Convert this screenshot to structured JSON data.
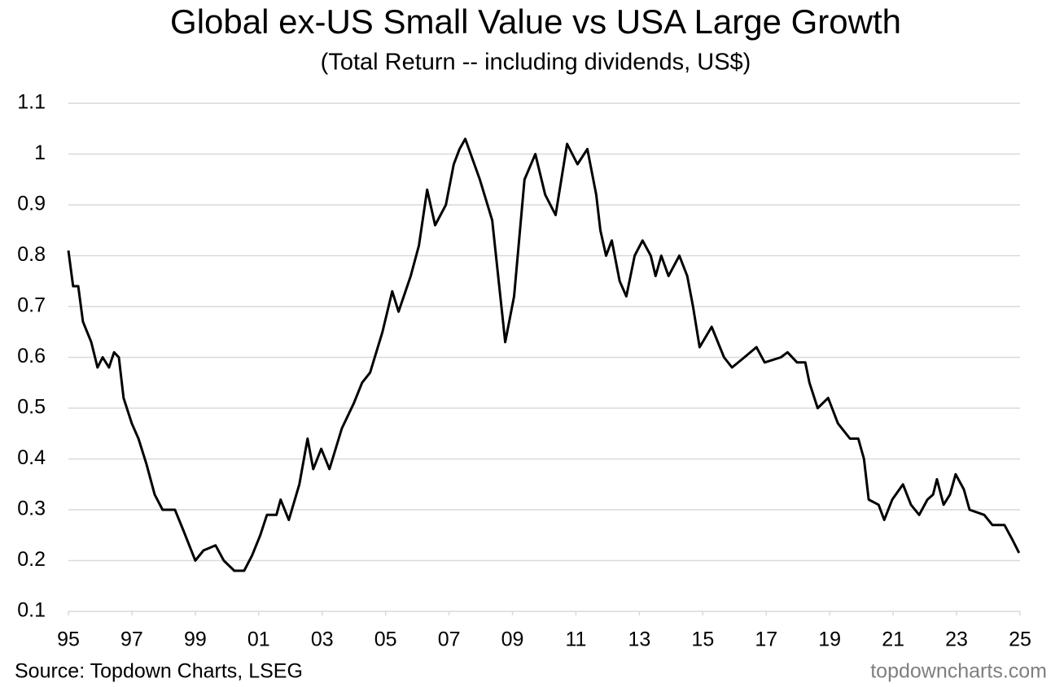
{
  "chart_data": {
    "type": "line",
    "title": "Global ex-US Small Value vs USA Large Growth",
    "subtitle": "(Total Return -- including dividends, US$)",
    "source": "Source: Topdown Charts, LSEG",
    "watermark": "topdowncharts.com",
    "color": "#000000",
    "grid": true,
    "xlim": [
      1995,
      2025
    ],
    "xticks": [
      {
        "value": 1995,
        "label": "95"
      },
      {
        "value": 1997,
        "label": "97"
      },
      {
        "value": 1999,
        "label": "99"
      },
      {
        "value": 2001,
        "label": "01"
      },
      {
        "value": 2003,
        "label": "03"
      },
      {
        "value": 2005,
        "label": "05"
      },
      {
        "value": 2007,
        "label": "07"
      },
      {
        "value": 2009,
        "label": "09"
      },
      {
        "value": 2011,
        "label": "11"
      },
      {
        "value": 2013,
        "label": "13"
      },
      {
        "value": 2015,
        "label": "15"
      },
      {
        "value": 2017,
        "label": "17"
      },
      {
        "value": 2019,
        "label": "19"
      },
      {
        "value": 2021,
        "label": "21"
      },
      {
        "value": 2023,
        "label": "23"
      },
      {
        "value": 2025,
        "label": "25"
      }
    ],
    "ylim": [
      0.1,
      1.1
    ],
    "yticks": [
      0.1,
      0.2,
      0.3,
      0.4,
      0.5,
      0.6,
      0.7,
      0.8,
      0.9,
      1,
      1.1
    ],
    "x": [
      1995.0,
      1995.15,
      1995.31,
      1995.46,
      1995.72,
      1995.92,
      1996.08,
      1996.28,
      1996.44,
      1996.59,
      1996.74,
      1997.0,
      1997.21,
      1997.46,
      1997.72,
      1997.97,
      1998.36,
      1998.62,
      1999.0,
      1999.26,
      1999.64,
      1999.9,
      2000.23,
      2000.54,
      2000.79,
      2001.05,
      2001.26,
      2001.56,
      2001.69,
      2001.95,
      2002.28,
      2002.54,
      2002.72,
      2002.97,
      2003.23,
      2003.62,
      2004.0,
      2004.26,
      2004.51,
      2004.9,
      2005.21,
      2005.41,
      2005.79,
      2006.05,
      2006.31,
      2006.56,
      2006.9,
      2007.15,
      2007.33,
      2007.51,
      2007.97,
      2008.36,
      2008.77,
      2009.05,
      2009.38,
      2009.72,
      2010.03,
      2010.36,
      2010.72,
      2011.05,
      2011.36,
      2011.64,
      2011.77,
      2011.95,
      2012.13,
      2012.38,
      2012.59,
      2012.85,
      2013.1,
      2013.36,
      2013.51,
      2013.69,
      2013.92,
      2014.26,
      2014.51,
      2014.69,
      2014.9,
      2015.28,
      2015.67,
      2015.92,
      2016.31,
      2016.69,
      2016.95,
      2017.46,
      2017.67,
      2017.97,
      2018.23,
      2018.36,
      2018.62,
      2018.95,
      2019.26,
      2019.64,
      2019.9,
      2020.08,
      2020.23,
      2020.54,
      2020.72,
      2020.97,
      2021.31,
      2021.56,
      2021.82,
      2022.08,
      2022.26,
      2022.38,
      2022.59,
      2022.79,
      2022.97,
      2023.23,
      2023.41,
      2023.87,
      2024.13,
      2024.51,
      2024.77,
      2024.97
    ],
    "values": [
      0.81,
      0.74,
      0.74,
      0.67,
      0.63,
      0.58,
      0.6,
      0.58,
      0.61,
      0.6,
      0.52,
      0.47,
      0.44,
      0.39,
      0.33,
      0.3,
      0.3,
      0.26,
      0.2,
      0.22,
      0.23,
      0.2,
      0.18,
      0.18,
      0.21,
      0.25,
      0.29,
      0.29,
      0.32,
      0.28,
      0.35,
      0.44,
      0.38,
      0.42,
      0.38,
      0.46,
      0.51,
      0.55,
      0.57,
      0.65,
      0.73,
      0.69,
      0.76,
      0.82,
      0.93,
      0.86,
      0.9,
      0.98,
      1.01,
      1.03,
      0.95,
      0.87,
      0.63,
      0.72,
      0.95,
      1.0,
      0.92,
      0.88,
      1.02,
      0.98,
      1.01,
      0.92,
      0.85,
      0.8,
      0.83,
      0.75,
      0.72,
      0.8,
      0.83,
      0.8,
      0.76,
      0.8,
      0.76,
      0.8,
      0.76,
      0.7,
      0.62,
      0.66,
      0.6,
      0.58,
      0.6,
      0.62,
      0.59,
      0.6,
      0.61,
      0.59,
      0.59,
      0.55,
      0.5,
      0.52,
      0.47,
      0.44,
      0.44,
      0.4,
      0.32,
      0.31,
      0.28,
      0.32,
      0.35,
      0.31,
      0.29,
      0.32,
      0.33,
      0.36,
      0.31,
      0.33,
      0.37,
      0.34,
      0.3,
      0.29,
      0.27,
      0.27,
      0.24,
      0.215
    ]
  }
}
